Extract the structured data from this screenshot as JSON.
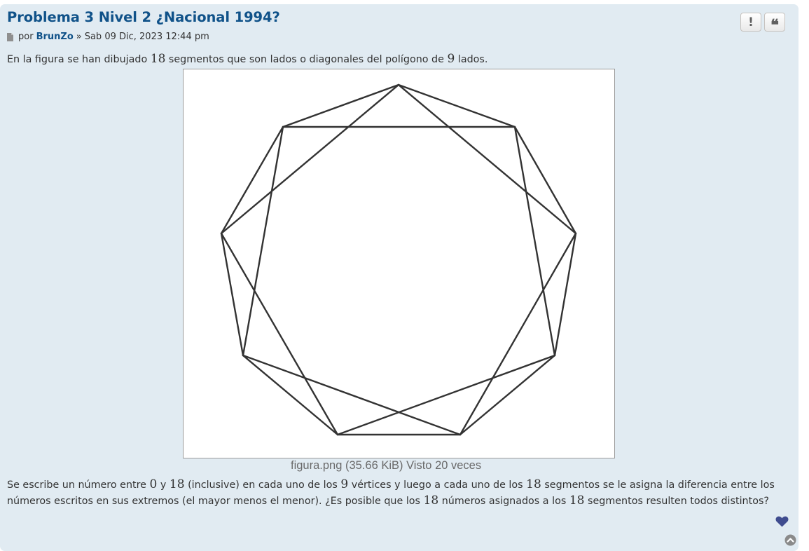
{
  "post": {
    "title": "Problema 3 Nivel 2 ¿Nacional 1994?",
    "author": {
      "prefix": "por",
      "username": "BrunZo",
      "separator": "»",
      "date": "Sab 09 Dic, 2023 12:44 pm"
    },
    "actions": {
      "report_label": "!",
      "quote_label": "❝"
    },
    "intro": {
      "part1": "En la figura se han dibujado ",
      "num_segments": "18",
      "part2": " segmentos que son lados o diagonales del polígono de ",
      "num_sides": "9",
      "part3": " lados."
    },
    "attachment": {
      "caption": "figura.png (35.66 KiB) Visto 20 veces"
    },
    "question": {
      "line1": {
        "p1": "Se escribe un número entre ",
        "n0": "0",
        "p2": " y ",
        "n18": "18",
        "p3": " (inclusive) en cada uno de los ",
        "n9": "9",
        "p4": " vértices y luego a cada uno de los ",
        "n18b": "18",
        "p5": " segmentos se le asigna la diferencia entre los"
      },
      "line2": {
        "p1": "números escritos en sus extremos (el mayor menos el menor). ¿Es posible que los ",
        "n18": "18",
        "p2": " números asignados a los ",
        "n18b": "18",
        "p3": " segmentos resulten todos distintos?"
      }
    }
  },
  "icons": {
    "file": "file-icon",
    "heart": "heart-icon",
    "top": "chevron-up-icon"
  },
  "colors": {
    "background": "#e1ebf2",
    "title": "#105289",
    "text": "#333333",
    "heart": "#3f4c8f"
  }
}
